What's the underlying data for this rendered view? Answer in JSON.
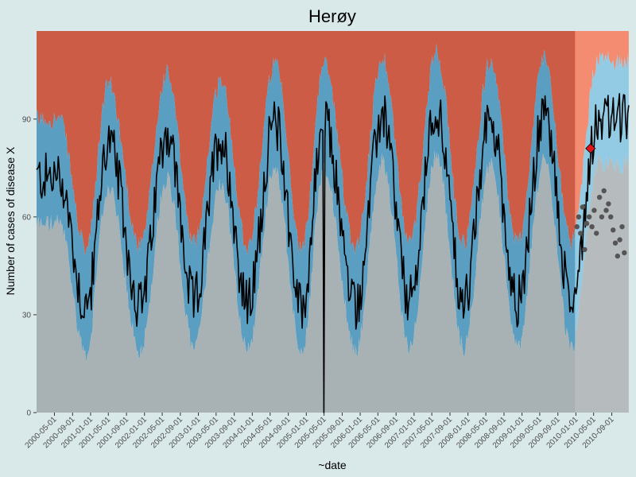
{
  "chart_data": {
    "type": "area",
    "title": "Herøy",
    "xlabel": "~date",
    "ylabel": "Number of cases of disease X",
    "xlim": [
      "2000-01-01",
      "2010-12-31"
    ],
    "ylim": [
      0,
      117
    ],
    "y_ticks": [
      0,
      30,
      60,
      90
    ],
    "x_ticks": [
      "2000-05-01",
      "2000-09-01",
      "2001-01-01",
      "2001-05-01",
      "2001-09-01",
      "2002-01-01",
      "2002-05-01",
      "2002-09-01",
      "2003-01-01",
      "2003-05-01",
      "2003-09-01",
      "2004-01-01",
      "2004-05-01",
      "2004-09-01",
      "2005-01-01",
      "2005-05-01",
      "2005-09-01",
      "2006-01-01",
      "2006-05-01",
      "2006-09-01",
      "2007-01-01",
      "2007-05-01",
      "2007-09-01",
      "2008-01-01",
      "2008-05-01",
      "2008-09-01",
      "2009-01-01",
      "2009-05-01",
      "2009-09-01",
      "2010-01-01",
      "2010-05-01",
      "2010-09-01"
    ],
    "grid": false,
    "colors": {
      "background": "#d9e8e8",
      "upper_region": "#cc5c45",
      "upper_region_forecast": "#f48c72",
      "band": "#5a9ec2",
      "band_forecast": "#93cbe4",
      "lower_region": "#a8b2b4",
      "lower_region_forecast": "#b6bbbe",
      "line": "#000000",
      "points": "#555555",
      "alert_marker": "#e0131a"
    },
    "forecast_start": "2010-01-01",
    "seasonal_peaks": [
      {
        "date": "2000-06-01",
        "value": 80
      },
      {
        "date": "2001-05-01",
        "value": 91
      },
      {
        "date": "2002-06-01",
        "value": 94
      },
      {
        "date": "2003-06-01",
        "value": 92
      },
      {
        "date": "2004-06-01",
        "value": 97
      },
      {
        "date": "2005-05-01",
        "value": 97
      },
      {
        "date": "2006-06-01",
        "value": 99
      },
      {
        "date": "2007-06-01",
        "value": 101
      },
      {
        "date": "2008-06-01",
        "value": 98
      },
      {
        "date": "2009-06-01",
        "value": 99
      },
      {
        "date": "2010-06-01",
        "value": 98
      }
    ],
    "seasonal_troughs": [
      {
        "date": "2000-12-01",
        "value": 40
      },
      {
        "date": "2001-12-01",
        "value": 41
      },
      {
        "date": "2002-12-01",
        "value": 42
      },
      {
        "date": "2003-12-01",
        "value": 41
      },
      {
        "date": "2004-12-01",
        "value": 40
      },
      {
        "date": "2005-12-01",
        "value": 41
      },
      {
        "date": "2006-12-01",
        "value": 42
      },
      {
        "date": "2007-12-01",
        "value": 42
      },
      {
        "date": "2008-12-01",
        "value": 42
      },
      {
        "date": "2009-12-01",
        "value": 42
      }
    ],
    "dropout": {
      "date": "2005-05-01",
      "value": 0
    },
    "observed_points_2010": [
      {
        "date": "2010-01-08",
        "value": 57
      },
      {
        "date": "2010-01-20",
        "value": 60
      },
      {
        "date": "2010-02-01",
        "value": 55
      },
      {
        "date": "2010-02-15",
        "value": 63
      },
      {
        "date": "2010-03-01",
        "value": 50
      },
      {
        "date": "2010-03-15",
        "value": 58
      },
      {
        "date": "2010-04-01",
        "value": 60
      },
      {
        "date": "2010-04-20",
        "value": 57
      },
      {
        "date": "2010-05-05",
        "value": 62
      },
      {
        "date": "2010-05-20",
        "value": 55
      },
      {
        "date": "2010-06-10",
        "value": 66
      },
      {
        "date": "2010-06-25",
        "value": 60
      },
      {
        "date": "2010-07-10",
        "value": 68
      },
      {
        "date": "2010-07-25",
        "value": 62
      },
      {
        "date": "2010-08-10",
        "value": 64
      },
      {
        "date": "2010-08-25",
        "value": 60
      },
      {
        "date": "2010-09-10",
        "value": 56
      },
      {
        "date": "2010-09-25",
        "value": 52
      },
      {
        "date": "2010-10-10",
        "value": 48
      },
      {
        "date": "2010-10-25",
        "value": 53
      },
      {
        "date": "2010-11-10",
        "value": 57
      },
      {
        "date": "2010-11-25",
        "value": 49
      }
    ],
    "alert": {
      "date": "2010-04-10",
      "value": 81
    }
  }
}
